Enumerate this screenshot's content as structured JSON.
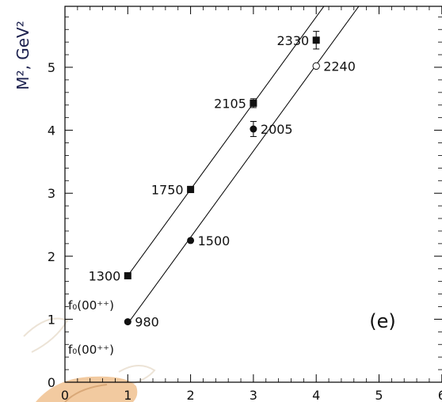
{
  "chart_data": {
    "type": "scatter",
    "title": "",
    "xlabel": "",
    "ylabel": "M², GeV²",
    "xlim": [
      0,
      6
    ],
    "ylim": [
      0,
      6
    ],
    "xticks": [
      "0",
      "1",
      "2",
      "3",
      "4",
      "5",
      "6"
    ],
    "yticks": [
      "0",
      "1",
      "2",
      "3",
      "4",
      "5"
    ],
    "panel_label": "(e)",
    "side_labels": [
      "f₀(00⁺⁺)",
      "f₀(00⁺⁺)"
    ],
    "series": [
      {
        "marker": "filled-square",
        "points": [
          {
            "x": 1,
            "y": 1.69,
            "label": "1300",
            "err": 0
          },
          {
            "x": 2,
            "y": 3.06,
            "label": "1750",
            "err": 0.05
          },
          {
            "x": 3,
            "y": 4.43,
            "label": "2105",
            "err": 0.07
          },
          {
            "x": 4,
            "y": 5.43,
            "label": "2330",
            "err": 0.14
          }
        ]
      },
      {
        "marker": "filled-circle",
        "points": [
          {
            "x": 1,
            "y": 0.96,
            "label": "980",
            "err": 0
          },
          {
            "x": 2,
            "y": 2.25,
            "label": "1500",
            "err": 0
          },
          {
            "x": 3,
            "y": 4.02,
            "label": "2005",
            "err": 0.12
          }
        ]
      },
      {
        "marker": "open-circle",
        "points": [
          {
            "x": 4,
            "y": 5.02,
            "label": "2240",
            "err": 0
          }
        ]
      }
    ],
    "trajectories": [
      {
        "slope": 1.37,
        "intercept": 0.32,
        "x_start": 1.0
      },
      {
        "slope": 1.37,
        "intercept": -0.44,
        "x_start": 1.0
      }
    ],
    "grid": false
  }
}
